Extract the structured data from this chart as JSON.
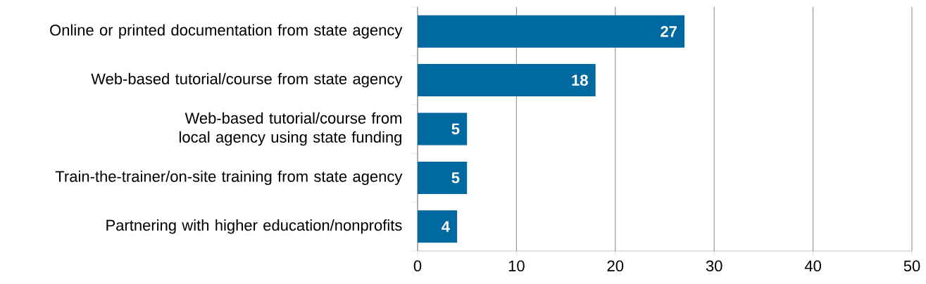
{
  "chart_data": {
    "type": "bar",
    "orientation": "horizontal",
    "categories": [
      "Online or printed documentation from state agency",
      "Web-based tutorial/course from state agency",
      "Web-based tutorial/course from local agency using state funding",
      "Train-the-trainer/on-site training from state agency",
      "Partnering with higher education/nonprofits"
    ],
    "values": [
      27,
      18,
      5,
      5,
      4
    ],
    "color": "#00699f",
    "xlim": [
      0,
      50
    ],
    "xticks": [
      0,
      10,
      20,
      30,
      40,
      50
    ],
    "grid": "x",
    "data_labels": true
  }
}
